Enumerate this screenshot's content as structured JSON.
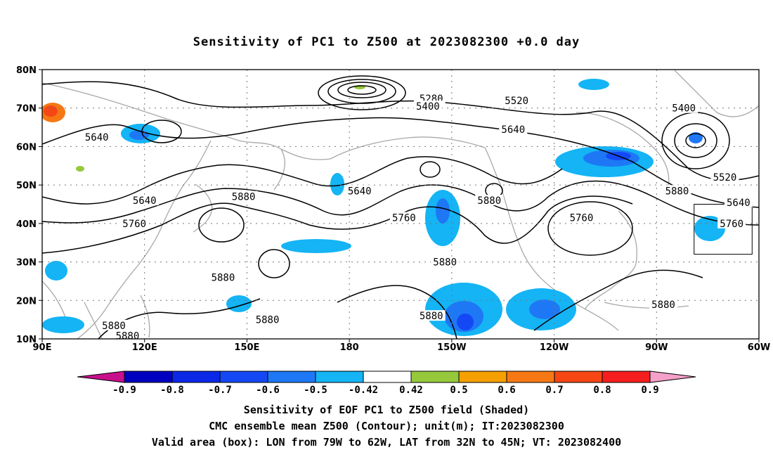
{
  "title": "Sensitivity of PC1 to Z500 at 2023082300 +0.0 day",
  "map": {
    "lon_range": [
      90,
      300
    ],
    "lat_range": [
      10,
      80
    ],
    "lat_ticks": [
      {
        "lat": 80,
        "label": "80N"
      },
      {
        "lat": 70,
        "label": "70N"
      },
      {
        "lat": 60,
        "label": "60N"
      },
      {
        "lat": 50,
        "label": "50N"
      },
      {
        "lat": 40,
        "label": "40N"
      },
      {
        "lat": 30,
        "label": "30N"
      },
      {
        "lat": 20,
        "label": "20N"
      },
      {
        "lat": 10,
        "label": "10N"
      }
    ],
    "lon_ticks": [
      {
        "lon": 90,
        "label": "90E"
      },
      {
        "lon": 120,
        "label": "120E"
      },
      {
        "lon": 150,
        "label": "150E"
      },
      {
        "lon": 180,
        "label": "180"
      },
      {
        "lon": 210,
        "label": "150W"
      },
      {
        "lon": 240,
        "label": "120W"
      },
      {
        "lon": 270,
        "label": "90W"
      },
      {
        "lon": 300,
        "label": "60W"
      }
    ],
    "valid_box": {
      "lon_min": 281,
      "lon_max": 298,
      "lat_min": 32,
      "lat_max": 45
    },
    "contour_labels": [
      {
        "text": "5280",
        "lon": 204,
        "lat": 72.5
      },
      {
        "text": "5400",
        "lon": 203,
        "lat": 70.5
      },
      {
        "text": "5520",
        "lon": 229,
        "lat": 72
      },
      {
        "text": "5640",
        "lon": 228,
        "lat": 64.5
      },
      {
        "text": "5400",
        "lon": 278,
        "lat": 70
      },
      {
        "text": "5520",
        "lon": 290,
        "lat": 52
      },
      {
        "text": "5640",
        "lon": 294,
        "lat": 45.5
      },
      {
        "text": "5760",
        "lon": 292,
        "lat": 40
      },
      {
        "text": "5880",
        "lon": 276,
        "lat": 48.5
      },
      {
        "text": "5760",
        "lon": 248,
        "lat": 41.5
      },
      {
        "text": "5880",
        "lon": 221,
        "lat": 46
      },
      {
        "text": "5760",
        "lon": 196,
        "lat": 41.5
      },
      {
        "text": "5640",
        "lon": 183,
        "lat": 48.5
      },
      {
        "text": "5880",
        "lon": 149,
        "lat": 47
      },
      {
        "text": "5640",
        "lon": 120,
        "lat": 46
      },
      {
        "text": "5760",
        "lon": 117,
        "lat": 40
      },
      {
        "text": "5640",
        "lon": 106,
        "lat": 62.5
      },
      {
        "text": "5880",
        "lon": 208,
        "lat": 30
      },
      {
        "text": "5880",
        "lon": 143,
        "lat": 26
      },
      {
        "text": "5880",
        "lon": 204,
        "lat": 16
      },
      {
        "text": "5880",
        "lon": 156,
        "lat": 15
      },
      {
        "text": "5880",
        "lon": 272,
        "lat": 19
      },
      {
        "text": "5880",
        "lon": 111,
        "lat": 13.5
      },
      {
        "text": "5880",
        "lon": 115,
        "lat": 10.8
      }
    ],
    "shading_colors": {
      "lt_-0.9": "#c8108c",
      "-0.9": "#0000c0",
      "-0.8": "#0a28e6",
      "-0.7": "#1448f5",
      "-0.6": "#1e78f5",
      "-0.5": "#14b4f5",
      "0.5": "#96c83c",
      "0.6": "#f5a000",
      "0.7": "#f57814",
      "0.8": "#f54614",
      "0.9": "#f51e1e",
      "gt_0.9": "#f5a0c8"
    }
  },
  "colorbar": {
    "labels": [
      "-0.9",
      "-0.8",
      "-0.7",
      "-0.6",
      "-0.5",
      "-0.42",
      "0.42",
      "0.5",
      "0.6",
      "0.7",
      "0.8",
      "0.9"
    ],
    "colors": [
      "#0000c0",
      "#0a28e6",
      "#1448f5",
      "#1e78f5",
      "#14b4f5",
      "#ffffff",
      "#96c83c",
      "#f5a000",
      "#f57814",
      "#f54614",
      "#f51e1e"
    ],
    "left_tip_color": "#c8108c",
    "right_tip_color": "#f5a0c8"
  },
  "caption": {
    "line1": "Sensitivity of EOF PC1 to Z500 field (Shaded)",
    "line2": "CMC ensemble mean Z500 (Contour); unit(m); IT:2023082300",
    "line3": "Valid area (box): LON from 79W to 62W, LAT from 32N to 45N; VT: 2023082400"
  }
}
